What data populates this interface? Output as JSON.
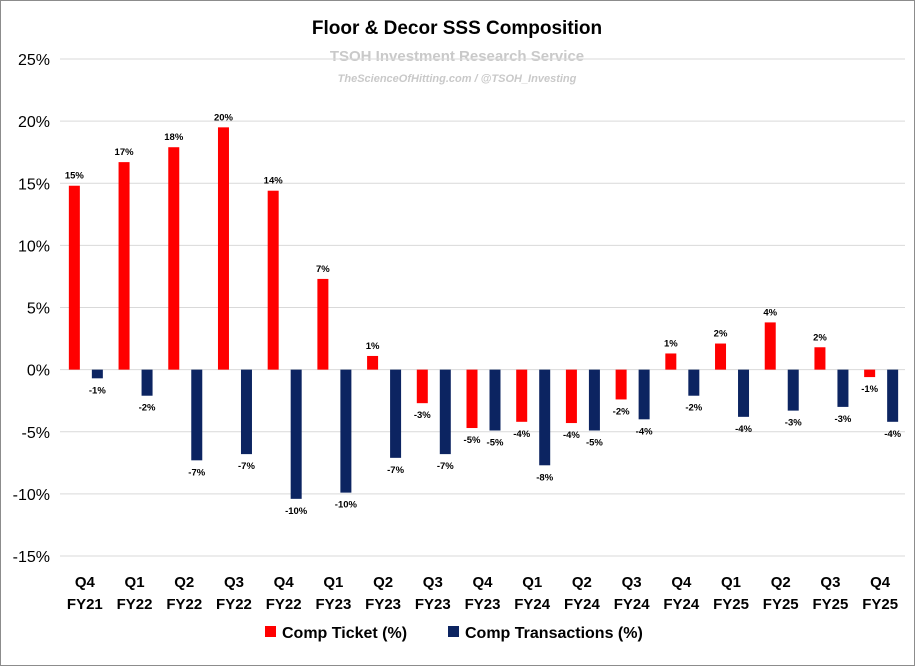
{
  "chart_data": {
    "type": "bar",
    "title": "Floor & Decor SSS Composition",
    "subtitle": "TSOH Investment Research Service",
    "credit": "TheScienceOfHitting.com / @TSOH_Investing",
    "xlabel": "",
    "ylabel": "",
    "ylim": [
      -15,
      25
    ],
    "yticks": [
      25,
      20,
      15,
      10,
      5,
      0,
      -5,
      -10,
      -15
    ],
    "ytick_labels": [
      "25%",
      "20%",
      "15%",
      "10%",
      "5%",
      "0%",
      "-5%",
      "-10%",
      "-15%"
    ],
    "grid": true,
    "legend_position": "bottom",
    "categories": [
      {
        "q": "Q4",
        "fy": "FY21"
      },
      {
        "q": "Q1",
        "fy": "FY22"
      },
      {
        "q": "Q2",
        "fy": "FY22"
      },
      {
        "q": "Q3",
        "fy": "FY22"
      },
      {
        "q": "Q4",
        "fy": "FY22"
      },
      {
        "q": "Q1",
        "fy": "FY23"
      },
      {
        "q": "Q2",
        "fy": "FY23"
      },
      {
        "q": "Q3",
        "fy": "FY23"
      },
      {
        "q": "Q4",
        "fy": "FY23"
      },
      {
        "q": "Q1",
        "fy": "FY24"
      },
      {
        "q": "Q2",
        "fy": "FY24"
      },
      {
        "q": "Q3",
        "fy": "FY24"
      },
      {
        "q": "Q4",
        "fy": "FY24"
      },
      {
        "q": "Q1",
        "fy": "FY25"
      },
      {
        "q": "Q2",
        "fy": "FY25"
      },
      {
        "q": "Q3",
        "fy": "FY25"
      },
      {
        "q": "Q4",
        "fy": "FY25"
      }
    ],
    "series": [
      {
        "name": "Comp Ticket (%)",
        "color": "#ff0000",
        "values": [
          14.8,
          16.7,
          17.9,
          19.5,
          14.4,
          7.3,
          1.1,
          -2.7,
          -4.7,
          -4.2,
          -4.3,
          -2.4,
          1.3,
          2.1,
          3.8,
          1.8,
          -0.6
        ],
        "labels": [
          "15%",
          "17%",
          "18%",
          "20%",
          "14%",
          "7%",
          "1%",
          "-3%",
          "-5%",
          "-4%",
          "-4%",
          "-2%",
          "1%",
          "2%",
          "4%",
          "2%",
          "-1%"
        ]
      },
      {
        "name": "Comp Transactions (%)",
        "color": "#0c2461",
        "values": [
          -0.7,
          -2.1,
          -7.3,
          -6.8,
          -10.4,
          -9.9,
          -7.1,
          -6.8,
          -4.9,
          -7.7,
          -4.9,
          -4.0,
          -2.1,
          -3.8,
          -3.3,
          -3.0,
          -4.2
        ],
        "labels": [
          "-1%",
          "-2%",
          "-7%",
          "-7%",
          "-10%",
          "-10%",
          "-7%",
          "-7%",
          "-5%",
          "-8%",
          "-5%",
          "-4%",
          "-2%",
          "-4%",
          "-3%",
          "-3%",
          "-4%"
        ]
      }
    ]
  }
}
